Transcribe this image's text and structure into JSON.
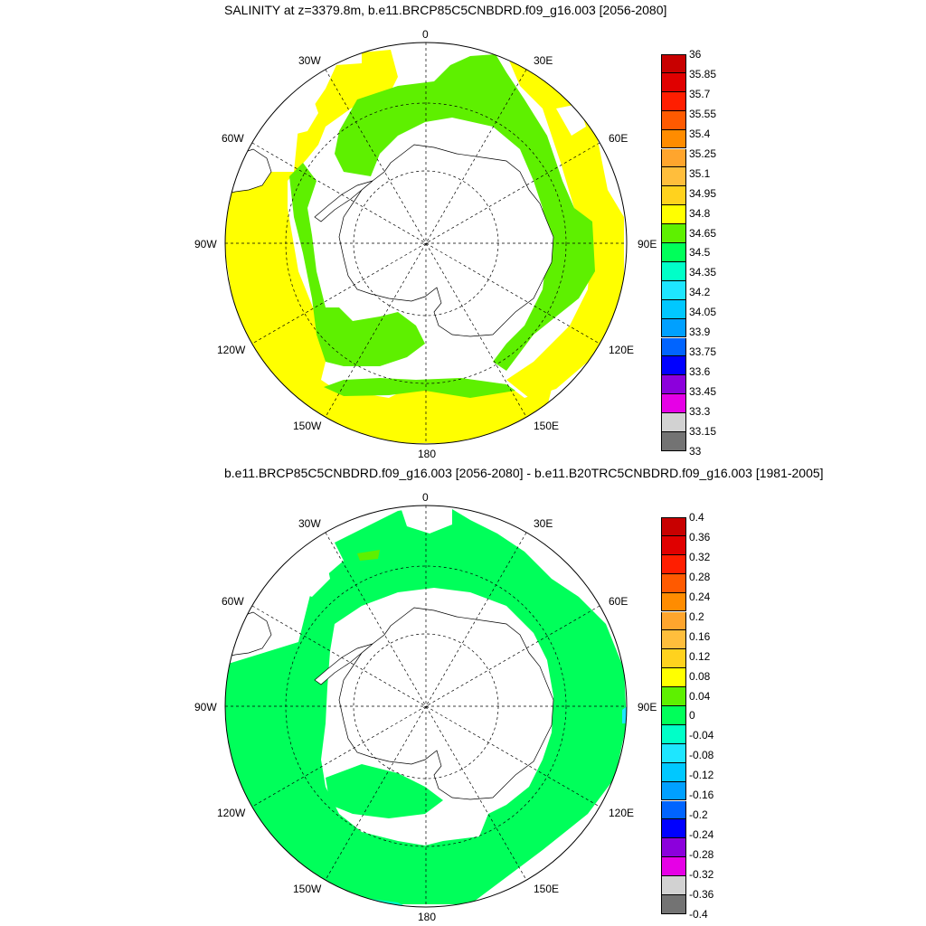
{
  "titles": {
    "top": "SALINITY at z=3379.8m, b.e11.BRCP85C5CNBDRD.f09_g16.003 [2056-2080]",
    "bottom": "b.e11.BRCP85C5CNBDRD.f09_g16.003 [2056-2080] - b.e11.B20TRC5CNBDRD.f09_g16.003 [1981-2005]"
  },
  "map_labels": {
    "lon_0": "0",
    "lon_30w": "30W",
    "lon_30e": "30E",
    "lon_60w": "60W",
    "lon_60e": "60E",
    "lon_90w": "90W",
    "lon_90e": "90E",
    "lon_120w": "120W",
    "lon_120e": "120E",
    "lon_150w": "150W",
    "lon_150e": "150E",
    "lon_180": "180"
  },
  "colorbar_top": {
    "ticks": [
      "36",
      "35.85",
      "35.7",
      "35.55",
      "35.4",
      "35.25",
      "35.1",
      "34.95",
      "34.8",
      "34.65",
      "34.5",
      "34.35",
      "34.2",
      "34.05",
      "33.9",
      "33.75",
      "33.6",
      "33.45",
      "33.3",
      "33.15",
      "33"
    ],
    "colors": [
      "#c80000",
      "#e00000",
      "#ff1e00",
      "#ff5a00",
      "#ff8c00",
      "#ffa52d",
      "#ffbe3c",
      "#ffd21e",
      "#ffff00",
      "#5ef000",
      "#00ff5a",
      "#00ffc8",
      "#1ee6ff",
      "#00c8ff",
      "#00a0ff",
      "#0064ff",
      "#0000ff",
      "#8c00dc",
      "#e600e6",
      "#d2d2d2",
      "#737373"
    ]
  },
  "colorbar_bottom": {
    "ticks": [
      "0.4",
      "0.36",
      "0.32",
      "0.28",
      "0.24",
      "0.2",
      "0.16",
      "0.12",
      "0.08",
      "0.04",
      "0",
      "-0.04",
      "-0.08",
      "-0.12",
      "-0.16",
      "-0.2",
      "-0.24",
      "-0.28",
      "-0.32",
      "-0.36",
      "-0.4"
    ],
    "colors": [
      "#c80000",
      "#e00000",
      "#ff1e00",
      "#ff5a00",
      "#ff8c00",
      "#ffa52d",
      "#ffbe3c",
      "#ffd21e",
      "#ffff00",
      "#5ef000",
      "#00ff5a",
      "#00ffc8",
      "#1ee6ff",
      "#00c8ff",
      "#00a0ff",
      "#0064ff",
      "#0000ff",
      "#8c00dc",
      "#e600e6",
      "#d2d2d2",
      "#737373"
    ]
  },
  "fill_colors": {
    "yellow": "#ffff00",
    "green": "#5ef000",
    "bright_green": "#00ff5a",
    "cyan": "#00ffc8",
    "light_blue": "#1ee6ff"
  }
}
